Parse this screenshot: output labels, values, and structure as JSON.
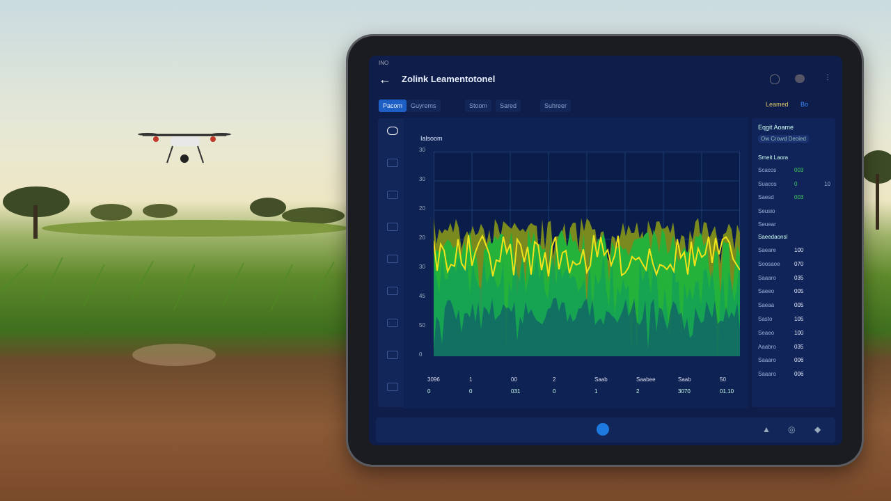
{
  "status": "INO",
  "header": {
    "title": "Zolink Leamentotonel"
  },
  "tabs": [
    "Pacom",
    "Guyrems",
    "Stoom",
    "Sared",
    "Suhreer"
  ],
  "toolbar_right": [
    "Leamed",
    "Bo"
  ],
  "chart": {
    "title": "Ialsoom",
    "y_labels": [
      "30",
      "30",
      "20",
      "20",
      "30",
      "45",
      "50",
      "0"
    ]
  },
  "stats": {
    "rows": [
      [
        "3096",
        "1",
        "00",
        "2",
        "Saab",
        "Saabee",
        "Saab",
        "50"
      ],
      [
        "0",
        "0",
        "031",
        "0",
        "1",
        "2",
        "3070",
        "01.10"
      ]
    ]
  },
  "panel": {
    "title": "Eqgit Aoame",
    "button": "Ow Crowd Deoled",
    "section1": "Smeit Laora",
    "rows1": [
      [
        "Scacos",
        "003"
      ],
      [
        "Suacos",
        "0",
        "10"
      ],
      [
        "Saesd",
        "003"
      ],
      [
        "Seusio"
      ],
      [
        "Seuear"
      ]
    ],
    "section2": "Saeedaonsl",
    "rows2": [
      [
        "Saeare",
        "100"
      ],
      [
        "Soosaoe",
        "070"
      ],
      [
        "Saaaro",
        "035"
      ],
      [
        "Saeeo",
        "005"
      ],
      [
        "Saeaa",
        "005"
      ],
      [
        "Sasto",
        "105"
      ],
      [
        "Seaeo",
        "100"
      ],
      [
        "Aaabro",
        "035"
      ],
      [
        "Saaaro",
        "006"
      ],
      [
        "Saaaro",
        "006"
      ]
    ]
  }
}
